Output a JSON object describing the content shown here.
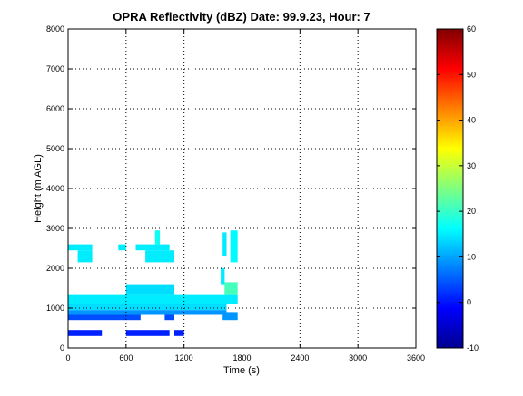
{
  "chart_data": {
    "type": "heatmap",
    "title": "OPRA Reflectivity (dBZ)  Date: 99.9.23, Hour: 7",
    "xlabel": "Time (s)",
    "ylabel": "Height (m AGL)",
    "xlim": [
      0,
      3600
    ],
    "ylim": [
      0,
      8000
    ],
    "x_ticks": [
      0,
      600,
      1200,
      1800,
      2400,
      3000,
      3600
    ],
    "y_ticks": [
      0,
      1000,
      2000,
      3000,
      4000,
      5000,
      6000,
      7000,
      8000
    ],
    "grid": true,
    "colorbar": {
      "min": -10,
      "max": 60,
      "ticks": [
        -10,
        0,
        10,
        20,
        30,
        40,
        50,
        60
      ],
      "colormap": "jet"
    },
    "cells": [
      {
        "t0": 0,
        "t1": 1755,
        "h0": 1100,
        "h1": 1350,
        "dbz": 15
      },
      {
        "t0": 0,
        "t1": 1640,
        "h0": 950,
        "h1": 1100,
        "dbz": 14
      },
      {
        "t0": 0,
        "t1": 1640,
        "h0": 830,
        "h1": 950,
        "dbz": 9
      },
      {
        "t0": 0,
        "t1": 750,
        "h0": 700,
        "h1": 830,
        "dbz": 4
      },
      {
        "t0": 1000,
        "t1": 1100,
        "h0": 700,
        "h1": 830,
        "dbz": 4
      },
      {
        "t0": 1600,
        "t1": 1755,
        "h0": 700,
        "h1": 900,
        "dbz": 9
      },
      {
        "t0": 600,
        "t1": 1100,
        "h0": 1350,
        "h1": 1600,
        "dbz": 14
      },
      {
        "t0": 1620,
        "t1": 1755,
        "h0": 1350,
        "h1": 1650,
        "dbz": 21
      },
      {
        "t0": 1580,
        "t1": 1620,
        "h0": 1600,
        "h1": 2000,
        "dbz": 15
      },
      {
        "t0": 0,
        "t1": 250,
        "h0": 2450,
        "h1": 2600,
        "dbz": 15
      },
      {
        "t0": 100,
        "t1": 250,
        "h0": 2300,
        "h1": 2450,
        "dbz": 15
      },
      {
        "t0": 100,
        "t1": 250,
        "h0": 2150,
        "h1": 2300,
        "dbz": 15
      },
      {
        "t0": 520,
        "t1": 600,
        "h0": 2450,
        "h1": 2600,
        "dbz": 15
      },
      {
        "t0": 700,
        "t1": 1050,
        "h0": 2450,
        "h1": 2600,
        "dbz": 15
      },
      {
        "t0": 800,
        "t1": 1100,
        "h0": 2150,
        "h1": 2450,
        "dbz": 15
      },
      {
        "t0": 900,
        "t1": 950,
        "h0": 2600,
        "h1": 2950,
        "dbz": 17
      },
      {
        "t0": 1680,
        "t1": 1755,
        "h0": 2150,
        "h1": 2950,
        "dbz": 16
      },
      {
        "t0": 1600,
        "t1": 1640,
        "h0": 2300,
        "h1": 2900,
        "dbz": 15
      },
      {
        "t0": 0,
        "t1": 350,
        "h0": 300,
        "h1": 450,
        "dbz": 1
      },
      {
        "t0": 600,
        "t1": 1050,
        "h0": 300,
        "h1": 450,
        "dbz": 1
      },
      {
        "t0": 1100,
        "t1": 1200,
        "h0": 300,
        "h1": 450,
        "dbz": 1
      }
    ]
  }
}
